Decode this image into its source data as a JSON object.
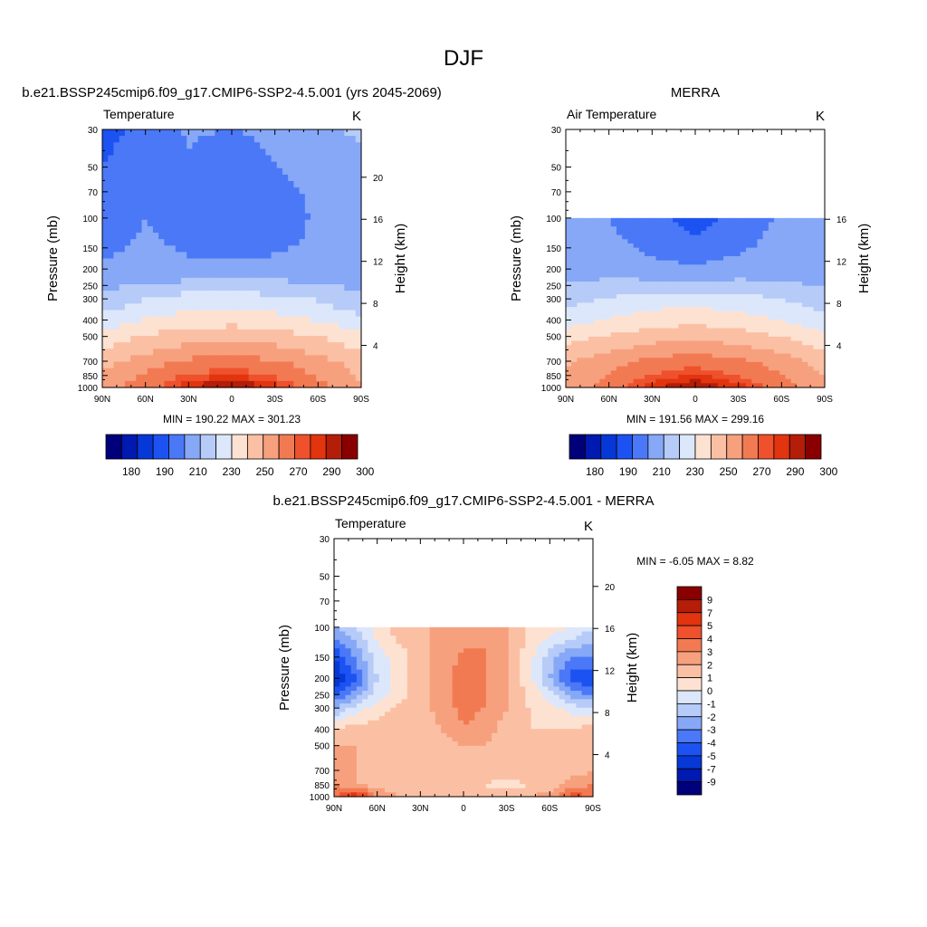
{
  "figure": {
    "title": "DJF"
  },
  "colors": {
    "abs_palette": [
      "#00007a",
      "#0019b0",
      "#0538d6",
      "#1c52f2",
      "#4a78f7",
      "#86a8f7",
      "#b6cbf8",
      "#dce7fb",
      "#fde2d2",
      "#fbc0a4",
      "#f7a07e",
      "#f27a52",
      "#ee512c",
      "#e1340f",
      "#b41d08",
      "#8a0000"
    ],
    "diff_palette": [
      "#00007a",
      "#0019b0",
      "#0538d6",
      "#1c52f2",
      "#4a78f7",
      "#86a8f7",
      "#b6cbf8",
      "#dce7fb",
      "#fde2d2",
      "#fbc0a4",
      "#f7a07e",
      "#f27a52",
      "#ee512c",
      "#e1340f",
      "#b41d08",
      "#8a0000"
    ]
  },
  "axes": {
    "pressure_ticks": [
      "30",
      "50",
      "70",
      "100",
      "150",
      "200",
      "250",
      "300",
      "400",
      "500",
      "700",
      "850",
      "1000"
    ],
    "lat_ticks": [
      "90N",
      "60N",
      "30N",
      "0",
      "30S",
      "60S",
      "90S"
    ],
    "ylabel": "Pressure (mb)",
    "ylabel_right": "Height (km)"
  },
  "chart_data": [
    {
      "type": "heatmap",
      "title": "b.e21.BSSP245cmip6.f09_g17.CMIP6-SSP2-4.5.001 (yrs 2045-2069)",
      "left_label": "Temperature",
      "units": "K",
      "xlabel": "",
      "ylabel": "Pressure (mb)",
      "ylabel_right": "Height (km)",
      "x_ticks": [
        "90N",
        "60N",
        "30N",
        "0",
        "30S",
        "60S",
        "90S"
      ],
      "y_ticks": [
        "30",
        "50",
        "70",
        "100",
        "150",
        "200",
        "250",
        "300",
        "400",
        "500",
        "700",
        "850",
        "1000"
      ],
      "height_ticks": [
        "4",
        "8",
        "12",
        "16",
        "20"
      ],
      "xlim": [
        90,
        -90
      ],
      "ylim": [
        1000,
        30
      ],
      "y_scale": "log",
      "minmax_text": "MIN = 190.22  MAX = 301.23",
      "colorbar_labels": [
        "180",
        "190",
        "210",
        "230",
        "250",
        "270",
        "290",
        "300"
      ],
      "levels": [
        175,
        180,
        185,
        190,
        200,
        210,
        220,
        230,
        240,
        250,
        260,
        270,
        280,
        285,
        290,
        295,
        300
      ],
      "data_top_p": 30,
      "grid_lat": [
        90,
        60,
        30,
        0,
        -30,
        -60,
        -90
      ],
      "grid_p": [
        30,
        50,
        100,
        200,
        300,
        500,
        700,
        1000
      ],
      "values": [
        [
          197,
          203,
          211,
          210,
          212,
          219,
          221
        ],
        [
          200,
          206,
          209,
          202,
          210,
          212,
          218
        ],
        [
          206,
          210,
          206,
          200,
          203,
          212,
          216
        ],
        [
          211,
          213,
          212,
          213,
          214,
          213,
          212
        ],
        [
          223,
          230,
          235,
          236,
          233,
          229,
          223
        ],
        [
          244,
          251,
          256,
          257,
          255,
          250,
          242
        ],
        [
          257,
          265,
          272,
          274,
          271,
          264,
          255
        ],
        [
          264,
          277,
          290,
          298,
          288,
          274,
          262
        ]
      ]
    },
    {
      "type": "heatmap",
      "title": "MERRA",
      "left_label": "Air Temperature",
      "units": "K",
      "xlabel": "",
      "ylabel": "Pressure (mb)",
      "ylabel_right": "Height (km)",
      "x_ticks": [
        "90N",
        "60N",
        "30N",
        "0",
        "30S",
        "60S",
        "90S"
      ],
      "y_ticks": [
        "30",
        "50",
        "70",
        "100",
        "150",
        "200",
        "250",
        "300",
        "400",
        "500",
        "700",
        "850",
        "1000"
      ],
      "height_ticks": [
        "4",
        "8",
        "12",
        "16"
      ],
      "xlim": [
        90,
        -90
      ],
      "ylim": [
        1000,
        30
      ],
      "y_scale": "log",
      "minmax_text": "MIN = 191.56  MAX = 299.16",
      "colorbar_labels": [
        "180",
        "190",
        "210",
        "230",
        "250",
        "270",
        "290",
        "300"
      ],
      "levels": [
        175,
        180,
        185,
        190,
        200,
        210,
        220,
        230,
        240,
        250,
        260,
        270,
        280,
        285,
        290,
        295,
        300
      ],
      "data_top_p": 100,
      "grid_lat": [
        90,
        60,
        30,
        0,
        -30,
        -60,
        -90
      ],
      "grid_p": [
        100,
        200,
        300,
        500,
        700,
        1000
      ],
      "values": [
        [
          211,
          210,
          203,
          196,
          203,
          212,
          219
        ],
        [
          215,
          216,
          213,
          212,
          214,
          215,
          214
        ],
        [
          226,
          231,
          235,
          236,
          234,
          230,
          224
        ],
        [
          246,
          251,
          256,
          258,
          255,
          250,
          243
        ],
        [
          259,
          266,
          273,
          276,
          272,
          266,
          256
        ],
        [
          262,
          276,
          289,
          296,
          288,
          275,
          263
        ]
      ]
    },
    {
      "type": "heatmap",
      "title": "b.e21.BSSP245cmip6.f09_g17.CMIP6-SSP2-4.5.001 - MERRA",
      "left_label": "Temperature",
      "units": "K",
      "xlabel": "",
      "ylabel": "Pressure (mb)",
      "ylabel_right": "Height (km)",
      "x_ticks": [
        "90N",
        "60N",
        "30N",
        "0",
        "30S",
        "60S",
        "90S"
      ],
      "y_ticks": [
        "30",
        "50",
        "70",
        "100",
        "150",
        "200",
        "250",
        "300",
        "400",
        "500",
        "700",
        "850",
        "1000"
      ],
      "height_ticks": [
        "4",
        "8",
        "12",
        "16",
        "20"
      ],
      "xlim": [
        90,
        -90
      ],
      "ylim": [
        1000,
        30
      ],
      "y_scale": "log",
      "minmax_text": "MIN =  -6.05  MAX =   8.82",
      "colorbar_labels": [
        "9",
        "7",
        "5",
        "4",
        "3",
        "2",
        "1",
        "0",
        "-1",
        "-2",
        "-3",
        "-4",
        "-5",
        "-7",
        "-9"
      ],
      "levels": [
        -10,
        -9,
        -7,
        -5,
        -4,
        -3,
        -2,
        -1,
        0,
        1,
        2,
        3,
        4,
        5,
        7,
        9,
        10
      ],
      "data_top_p": 100,
      "grid_lat": [
        90,
        75,
        60,
        45,
        30,
        15,
        0,
        -15,
        -30,
        -45,
        -60,
        -75,
        -90
      ],
      "grid_p": [
        100,
        150,
        200,
        250,
        300,
        400,
        500,
        700,
        850,
        1000
      ],
      "values": [
        [
          -2,
          -1,
          0.5,
          1.5,
          1.5,
          2.5,
          2.5,
          2.5,
          2,
          1,
          0.5,
          0,
          -1
        ],
        [
          -5,
          -3,
          -0.5,
          0.5,
          1.5,
          2.5,
          3.2,
          3.2,
          2,
          0.5,
          -1.5,
          -3,
          -3
        ],
        [
          -6,
          -4,
          -1,
          0.5,
          1.5,
          2.5,
          3.5,
          3.2,
          2,
          0.5,
          -2,
          -4.5,
          -5
        ],
        [
          -4,
          -2.5,
          -0.5,
          0.5,
          1.5,
          2.5,
          3.5,
          3.2,
          2,
          0.8,
          -0.5,
          -2.5,
          -3
        ],
        [
          -2,
          -0.5,
          0.5,
          1.2,
          1.5,
          2.5,
          3.3,
          3,
          2,
          1,
          0.5,
          -0.5,
          -1
        ],
        [
          1,
          1.5,
          1.5,
          1.5,
          1.5,
          2,
          3,
          2.5,
          1.5,
          1,
          1,
          1,
          1.5
        ],
        [
          2,
          2,
          1.5,
          1.5,
          1.5,
          1.5,
          2,
          2,
          1.5,
          1,
          1,
          1.5,
          2
        ],
        [
          2.5,
          2,
          1.5,
          1.5,
          1.5,
          1.5,
          1.5,
          1.5,
          1.5,
          1.5,
          1,
          1.5,
          2
        ],
        [
          3,
          2,
          1.5,
          1.5,
          1.5,
          1.5,
          1,
          1,
          0.5,
          1,
          1,
          2.5,
          3
        ],
        [
          4,
          6,
          3,
          2,
          1.5,
          1.5,
          1.5,
          1.5,
          2,
          2,
          2.5,
          4.5,
          4
        ]
      ]
    }
  ]
}
